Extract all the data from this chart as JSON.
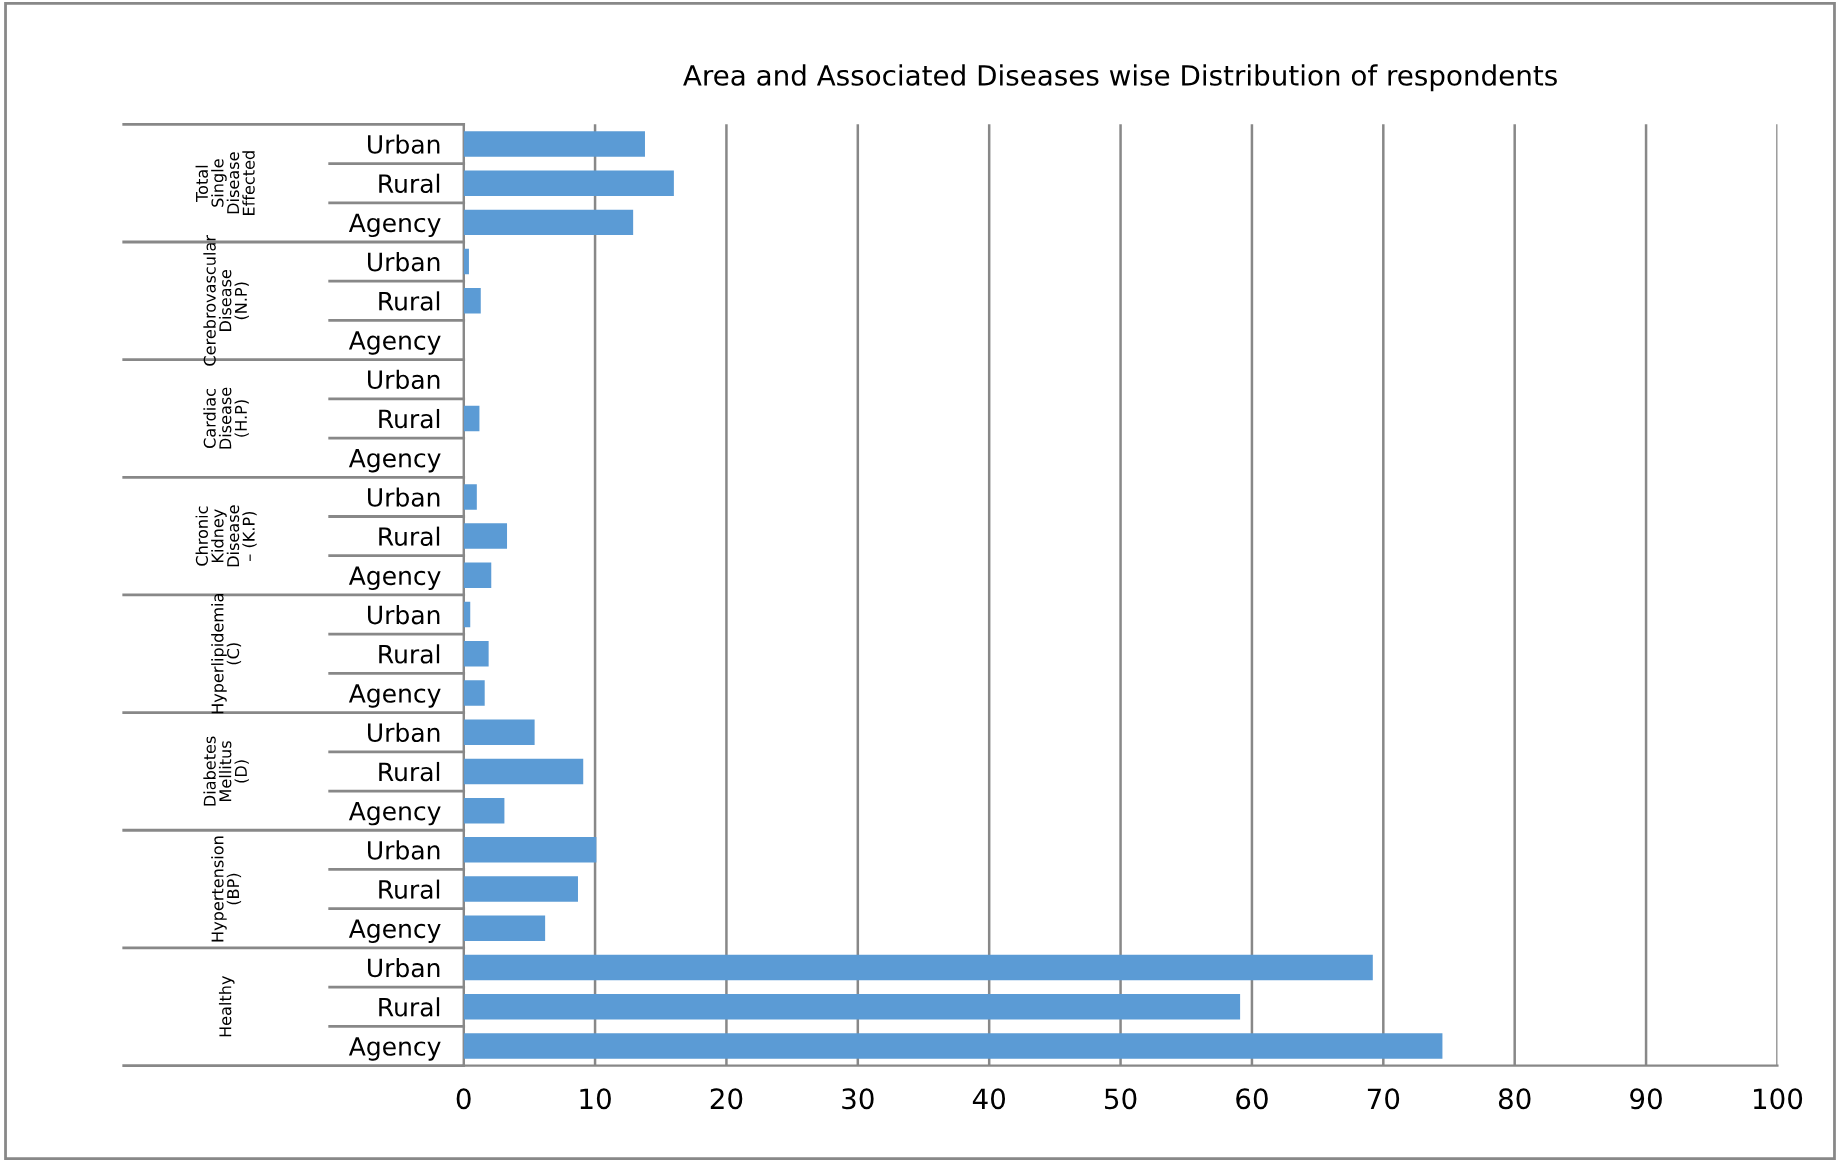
{
  "chart_data": {
    "type": "bar",
    "orientation": "horizontal",
    "title": "Area and Associated Diseases wise Distribution of respondents",
    "categories": [
      "Urban",
      "Rural",
      "Agency",
      "Urban",
      "Rural",
      "Agency",
      "Urban",
      "Rural",
      "Agency",
      "Urban",
      "Rural",
      "Agency",
      "Urban",
      "Rural",
      "Agency",
      "Urban",
      "Rural",
      "Agency",
      "Urban",
      "Rural",
      "Agency",
      "Urban",
      "Rural",
      "Agency"
    ],
    "annotations": [
      "Total Single Disease Effected",
      "Cerebrovascular Disease (N.P)",
      "Cardiac Disease (H.P)",
      "Chronic Kidney Disease – (K.P)",
      "Hyperlipidemia (C)",
      "Diabetes Mellitus (D)",
      "Hypertension (BP)",
      "Healthy"
    ],
    "values": [
      13.8,
      16.0,
      12.9,
      0.4,
      1.3,
      0,
      0,
      1.2,
      0,
      1.0,
      3.3,
      2.1,
      0.5,
      1.9,
      1.6,
      5.4,
      9.1,
      3.1,
      10.1,
      8.7,
      6.2,
      69.2,
      59.1,
      74.5
    ],
    "color": "#5b9bd5",
    "xlim": [
      0,
      100
    ],
    "xticks": [
      0,
      10,
      20,
      30,
      40,
      50,
      60,
      70,
      80,
      90,
      100
    ],
    "grid": "x"
  }
}
